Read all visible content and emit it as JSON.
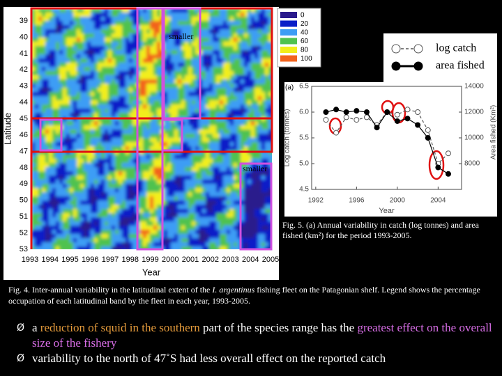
{
  "heatmap": {
    "ylabel": "Latitude",
    "xlabel": "Year",
    "yticks": [
      39,
      40,
      41,
      42,
      43,
      44,
      45,
      46,
      47,
      48,
      49,
      50,
      51,
      52,
      53
    ],
    "xticks": [
      1993,
      1994,
      1995,
      1996,
      1997,
      1998,
      1999,
      2000,
      2001,
      2002,
      2003,
      2004,
      2005
    ],
    "legend": [
      {
        "value": 0,
        "color": "#2b1b8c"
      },
      {
        "value": 20,
        "color": "#0a1fc8"
      },
      {
        "value": 40,
        "color": "#3d9df5"
      },
      {
        "value": 60,
        "color": "#4fc24f"
      },
      {
        "value": 80,
        "color": "#f2ee1a"
      },
      {
        "value": 100,
        "color": "#f2641e"
      }
    ],
    "annotations": [
      "smaller",
      "smaller"
    ]
  },
  "chart_data": {
    "type": "line",
    "panel": "(a)",
    "xlabel": "Year",
    "ylabel": "Log catch (tonnes)",
    "y2label": "Area fished (Km²)",
    "x": [
      1993,
      1994,
      1995,
      1996,
      1997,
      1998,
      1999,
      2000,
      2001,
      2002,
      2003,
      2004,
      2005
    ],
    "xlim": [
      1991.6,
      2006.3
    ],
    "xticks": [
      1992,
      1996,
      2000,
      2004
    ],
    "ylim": [
      4.5,
      6.5
    ],
    "yticks": [
      4.5,
      {
        "value": 5,
        "label": "5.0"
      },
      5.5,
      {
        "value": 6,
        "label": "6.0"
      },
      6.5
    ],
    "y2lim": [
      6000,
      14000
    ],
    "y2ticks": [
      8000,
      10000,
      12000,
      14000
    ],
    "series": [
      {
        "name": "log catch",
        "color": "#555555",
        "values": [
          5.85,
          5.6,
          5.9,
          5.85,
          5.9,
          5.75,
          6.0,
          5.95,
          6.05,
          6.0,
          5.65,
          5.0,
          5.2
        ]
      },
      {
        "name": "area fished",
        "color": "#000000",
        "axis": "y2",
        "values": [
          12000,
          12200,
          12000,
          12100,
          12000,
          10800,
          12000,
          11300,
          11500,
          11000,
          10000,
          7700,
          7200
        ]
      }
    ]
  },
  "fig5_caption": "Fig. 5. (a) Annual variability in catch (log tonnes) and area fished (km²) for the period 1993-2005.",
  "fig4_caption": [
    "Fig. 4. Inter-annual variability in the latitudinal extent of the ",
    "I. argentinus",
    " fishing fleet on the Patagonian shelf. Legend shows the percentage occupation of each latitudinal band by the fleet in each year, 1993-2005."
  ],
  "bullets": [
    [
      "a ",
      "reduction of squid in the southern",
      " part of the species range has the ",
      "greatest effect on the overall size of the fishery"
    ],
    [
      "variability to the north of 47˚S had less overall effect on the reported catch"
    ]
  ]
}
